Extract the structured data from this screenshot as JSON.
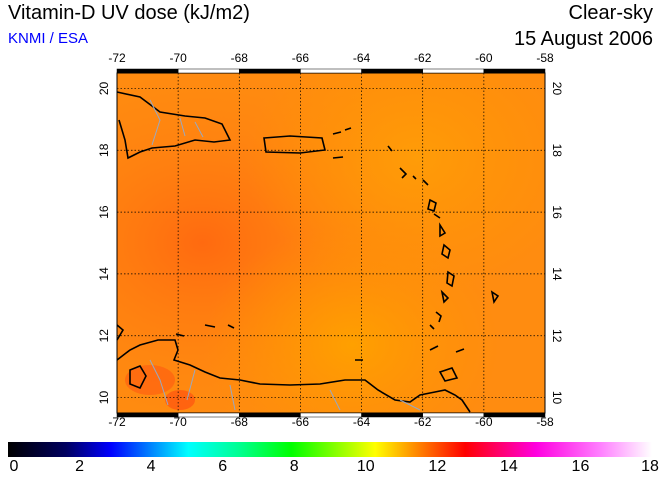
{
  "header": {
    "title": "Vitamin-D UV dose (kJ/m2)",
    "credit": "KNMI / ESA",
    "condition": "Clear-sky",
    "date": "15 August 2006"
  },
  "map": {
    "lon_ticks": [
      "-72",
      "-70",
      "-68",
      "-66",
      "-64",
      "-62",
      "-60",
      "-58"
    ],
    "lat_ticks": [
      "20",
      "18",
      "16",
      "14",
      "12",
      "10"
    ],
    "lon_range": [
      -72,
      -58
    ],
    "lat_range": [
      9.5,
      20.5
    ],
    "dominant_value_range": [
      11,
      13
    ]
  },
  "colorbar": {
    "labels": [
      "0",
      "2",
      "4",
      "6",
      "8",
      "10",
      "12",
      "14",
      "16",
      "18"
    ],
    "range": [
      0,
      18
    ],
    "colors": [
      "#000000",
      "#000080",
      "#0000ff",
      "#00ffff",
      "#00ff80",
      "#00ff00",
      "#ffff00",
      "#ff8000",
      "#ff0000",
      "#ff00ff",
      "#ffffff"
    ]
  }
}
